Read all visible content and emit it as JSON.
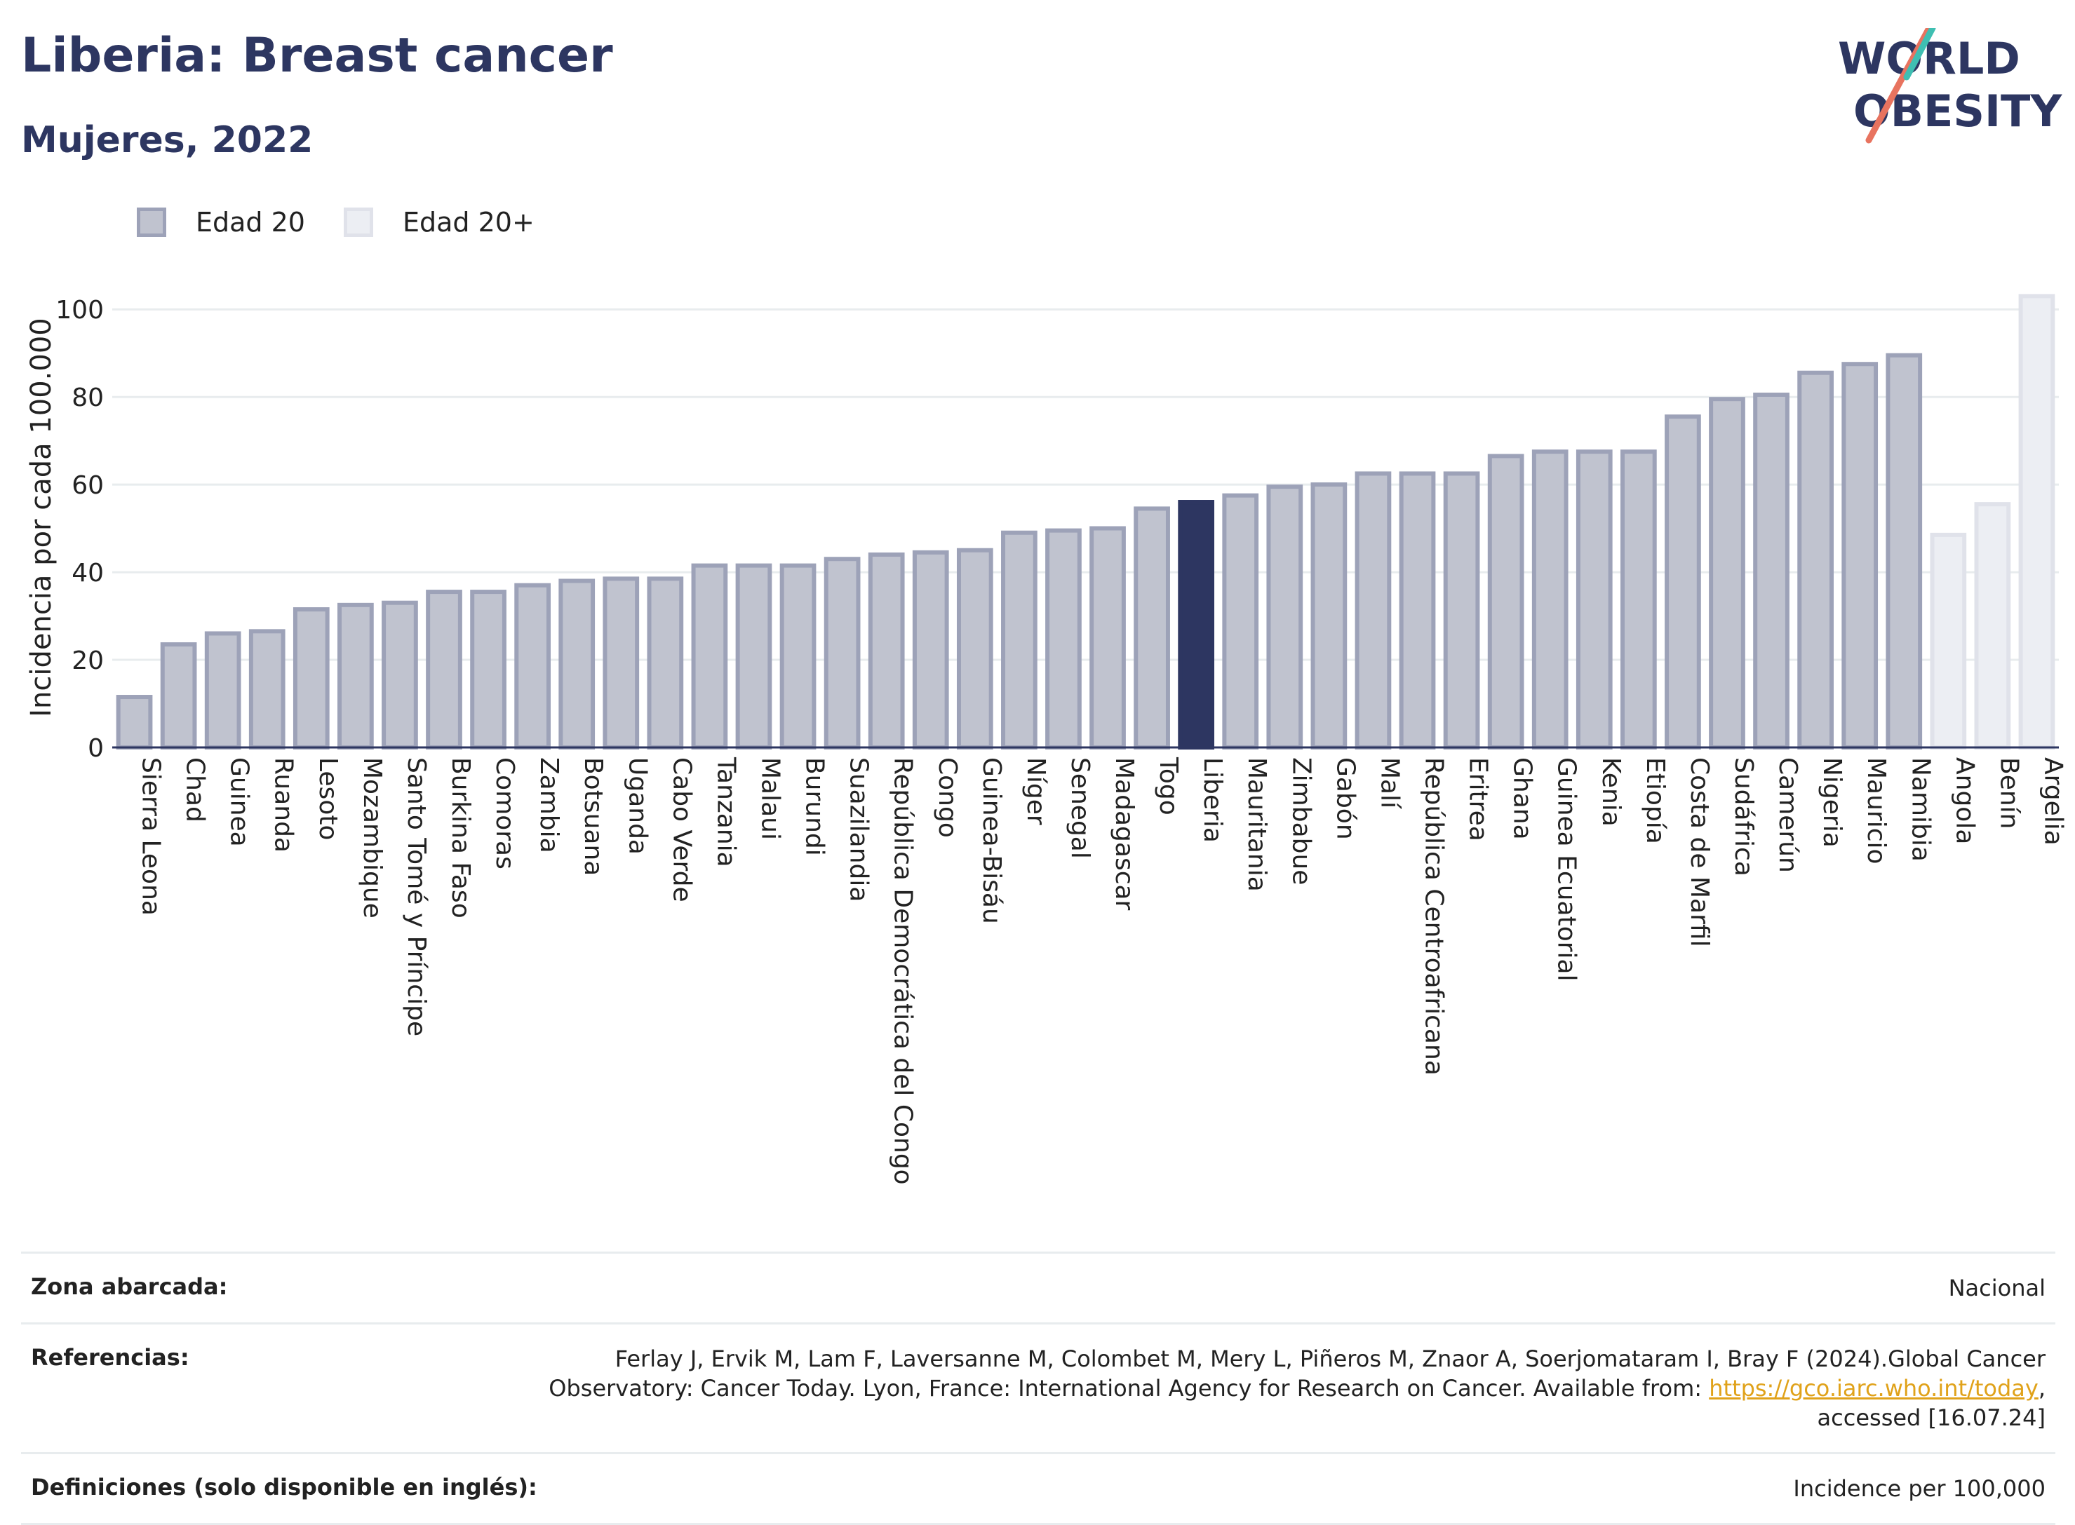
{
  "header": {
    "title": "Liberia: Breast cancer",
    "subtitle": "Mujeres, 2022"
  },
  "logo": {
    "line1": "WORLD",
    "line2": "OBESITY"
  },
  "legend": [
    {
      "label": "Edad 20",
      "color": "#c0c3cf"
    },
    {
      "label": "Edad 20+",
      "color": "#eceef3"
    }
  ],
  "colors": {
    "bar": "#c0c3cf",
    "bar_border": "#9da2b8",
    "highlight": "#2d3661",
    "bar_plus": "#eceef3",
    "bar_plus_border": "#e0e2ea",
    "grid": "#e8ecee",
    "text": "#2d3661"
  },
  "chart_data": {
    "type": "bar",
    "ylabel": "Incidencia por cada 100.000",
    "ylim": [
      0,
      105
    ],
    "yticks": [
      0,
      20,
      40,
      60,
      80,
      100
    ],
    "grid": true,
    "legend_position": "top-left",
    "highlight": "Liberia",
    "categories": [
      "Sierra Leona",
      "Chad",
      "Guinea",
      "Ruanda",
      "Lesoto",
      "Mozambique",
      "Santo Tomé y Príncipe",
      "Burkina Faso",
      "Comoras",
      "Zambia",
      "Botsuana",
      "Uganda",
      "Cabo Verde",
      "Tanzania",
      "Malaui",
      "Burundi",
      "Suazilandia",
      "República Democrática del Congo",
      "Congo",
      "Guinea-Bisáu",
      "Níger",
      "Senegal",
      "Madagascar",
      "Togo",
      "Liberia",
      "Mauritania",
      "Zimbabue",
      "Gabón",
      "Malí",
      "República Centroafricana",
      "Eritrea",
      "Ghana",
      "Guinea Ecuatorial",
      "Kenia",
      "Etiopía",
      "Costa de Marfil",
      "Sudáfrica",
      "Camerún",
      "Nigeria",
      "Mauricio",
      "Namibia",
      "Angola",
      "Benín",
      "Argelia"
    ],
    "values": [
      12,
      24,
      26.5,
      27,
      32,
      33,
      33.5,
      36,
      36,
      37.5,
      38.5,
      39,
      39,
      42,
      42,
      42,
      43.5,
      44.5,
      45,
      45.5,
      49.5,
      50,
      50.5,
      55,
      56.5,
      58,
      60,
      60.5,
      63,
      63,
      63,
      67,
      68,
      68,
      68,
      76,
      80,
      81,
      86,
      88,
      90,
      49,
      56,
      103.5
    ],
    "series_group": [
      "Edad 20",
      "Edad 20",
      "Edad 20",
      "Edad 20",
      "Edad 20",
      "Edad 20",
      "Edad 20",
      "Edad 20",
      "Edad 20",
      "Edad 20",
      "Edad 20",
      "Edad 20",
      "Edad 20",
      "Edad 20",
      "Edad 20",
      "Edad 20",
      "Edad 20",
      "Edad 20",
      "Edad 20",
      "Edad 20",
      "Edad 20",
      "Edad 20",
      "Edad 20",
      "Edad 20",
      "Edad 20",
      "Edad 20",
      "Edad 20",
      "Edad 20",
      "Edad 20",
      "Edad 20",
      "Edad 20",
      "Edad 20",
      "Edad 20",
      "Edad 20",
      "Edad 20",
      "Edad 20",
      "Edad 20",
      "Edad 20",
      "Edad 20",
      "Edad 20",
      "Edad 20",
      "Edad 20+",
      "Edad 20+",
      "Edad 20+"
    ]
  },
  "info": {
    "coverage_label": "Zona abarcada:",
    "coverage_value": "Nacional",
    "references_label": "Referencias:",
    "references_text": "Ferlay J, Ervik M, Lam F, Laversanne M, Colombet M, Mery L, Piñeros M, Znaor A, Soerjomataram I, Bray F (2024).Global Cancer Observatory: Cancer Today. Lyon, France: International Agency for Research on Cancer. Available from: ",
    "references_link": "https://gco.iarc.who.int/today",
    "references_tail": ", accessed [16.07.24]",
    "definitions_label": "Definiciones (solo disponible en inglés):",
    "definitions_value": "Incidence per 100,000"
  }
}
